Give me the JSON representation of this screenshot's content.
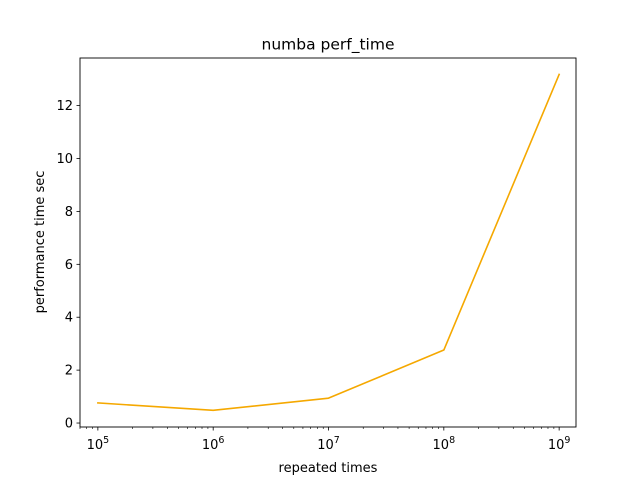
{
  "chart_data": {
    "type": "line",
    "title": "numba perf_time",
    "xlabel": "repeated times",
    "ylabel": "performance time sec",
    "xscale": "log",
    "xlim": [
      70000,
      1400000000
    ],
    "ylim": [
      -0.15,
      13.8
    ],
    "grid": false,
    "x": [
      100000,
      1000000,
      10000000,
      100000000,
      1000000000
    ],
    "series": [
      {
        "values": [
          0.76,
          0.48,
          0.94,
          2.76,
          13.18
        ],
        "color": "#f5a800"
      }
    ],
    "xticks": [
      {
        "value": 100000,
        "base": "10",
        "exp": "5"
      },
      {
        "value": 1000000,
        "base": "10",
        "exp": "6"
      },
      {
        "value": 10000000,
        "base": "10",
        "exp": "7"
      },
      {
        "value": 100000000,
        "base": "10",
        "exp": "8"
      },
      {
        "value": 1000000000,
        "base": "10",
        "exp": "9"
      }
    ],
    "yticks": [
      0,
      2,
      4,
      6,
      8,
      10,
      12
    ]
  }
}
